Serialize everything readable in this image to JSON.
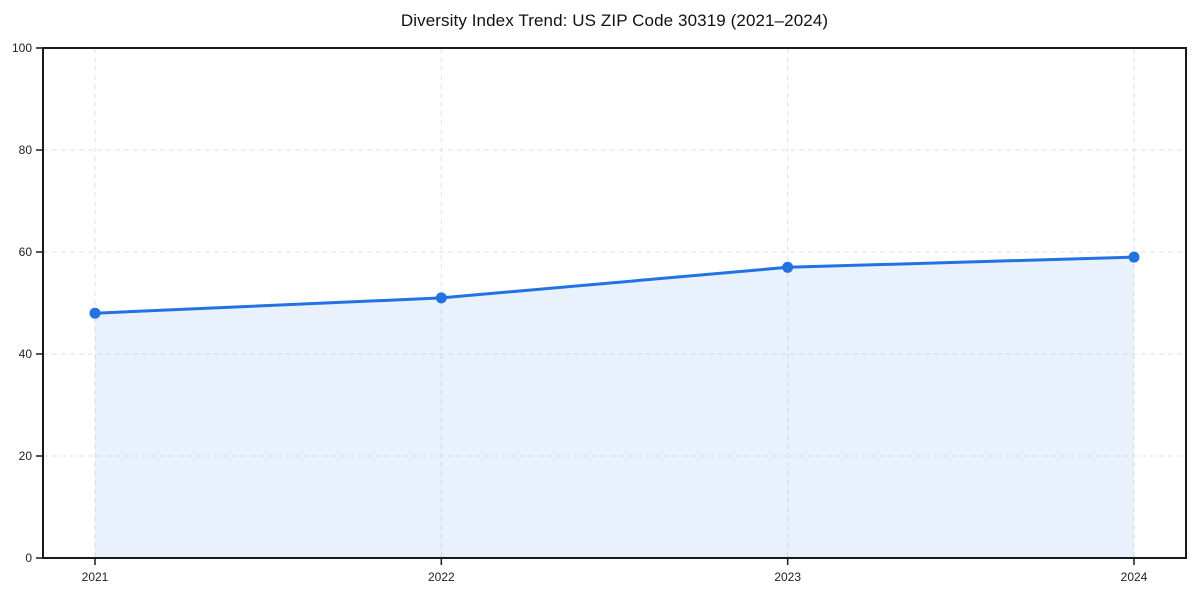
{
  "chart_data": {
    "type": "line",
    "title": "Diversity Index Trend: US ZIP Code 30319 (2021–2024)",
    "x": [
      "2021",
      "2022",
      "2023",
      "2024"
    ],
    "series": [
      {
        "name": "Diversity Index",
        "values": [
          48,
          51,
          57,
          59
        ]
      }
    ],
    "xlabel": "",
    "ylabel": "",
    "ylim": [
      0,
      100
    ],
    "yticks": [
      0,
      20,
      40,
      60,
      80,
      100
    ],
    "xticks": [
      "2021",
      "2022",
      "2023",
      "2024"
    ],
    "grid": true,
    "grid_style": "dashed",
    "legend": "none",
    "area_fill": true,
    "marker": "circle",
    "colors": {
      "line": "#2272e2",
      "marker": "#2272e2",
      "fill": "#2272e2",
      "fill_opacity": 0.1,
      "grid": "#e2e2e2",
      "axis": "#1a1a1a",
      "tick_text": "#222222",
      "background": "#ffffff"
    }
  }
}
